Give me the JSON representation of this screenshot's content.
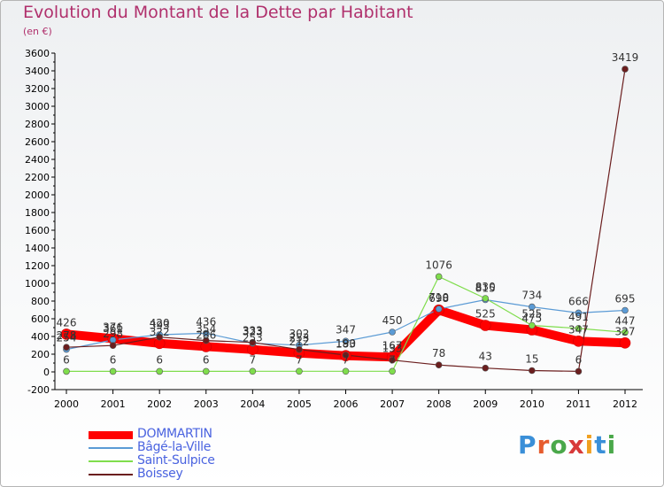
{
  "header": {
    "title": "Evolution du Montant de la Dette par Habitant",
    "subtitle": "(en €)"
  },
  "logo": {
    "text": "Proxiti",
    "letter_colors": [
      "#3a8fd8",
      "#e65c2e",
      "#4aa84a",
      "#d83a3a",
      "#f0a020",
      "#3a8fd8",
      "#4aa84a"
    ]
  },
  "chart_data": {
    "type": "line",
    "x": [
      "2000",
      "2001",
      "2002",
      "2003",
      "2004",
      "2005",
      "2006",
      "2007",
      "2008",
      "2009",
      "2010",
      "2011",
      "2012"
    ],
    "ylim": [
      -200,
      3600
    ],
    "yticks": [
      -200,
      0,
      200,
      400,
      600,
      800,
      1000,
      1200,
      1400,
      1600,
      1800,
      2000,
      2200,
      2400,
      2600,
      2800,
      3000,
      3200,
      3400,
      3600
    ],
    "grid": false,
    "legend_position": "bottom-left",
    "series": [
      {
        "name": "DOMMARTIN",
        "color": "#ff0000",
        "values": [
          426,
          376,
          322,
          286,
          253,
          212,
          183,
          167,
          698,
          525,
          475,
          347,
          327
        ]
      },
      {
        "name": "Bâgé-la-Ville",
        "color": "#5b9bd5",
        "values": [
          254,
          361,
          420,
          436,
          323,
          302,
          347,
          450,
          710,
          815,
          734,
          666,
          695
        ]
      },
      {
        "name": "Saint-Sulpice",
        "color": "#7fdd4c",
        "values": [
          6,
          6,
          6,
          6,
          7,
          7,
          7,
          7,
          1076,
          830,
          525,
          491,
          447
        ]
      },
      {
        "name": "Boissey",
        "color": "#6b1e1e",
        "values": [
          278,
          298,
          393,
          354,
          333,
          253,
          190,
          133,
          78,
          43,
          15,
          6,
          3419
        ]
      }
    ],
    "labels": [
      [
        "426",
        "376",
        "322",
        "286",
        "253",
        "212",
        "183",
        "167",
        "698",
        "525",
        "475",
        "347",
        "327"
      ],
      [
        "254",
        "361",
        "420",
        "436",
        "323",
        "302",
        "347",
        "450",
        "710",
        "815",
        "734",
        "666",
        "695"
      ],
      [
        "6",
        "6",
        "6",
        "6",
        "7",
        "7",
        "7",
        "7",
        "1076",
        "830",
        "525",
        "491",
        "447"
      ],
      [
        "278",
        "298",
        "393",
        "354",
        "333",
        "253",
        "190",
        "133",
        "78",
        "43",
        "15",
        "6",
        "3419"
      ]
    ]
  }
}
